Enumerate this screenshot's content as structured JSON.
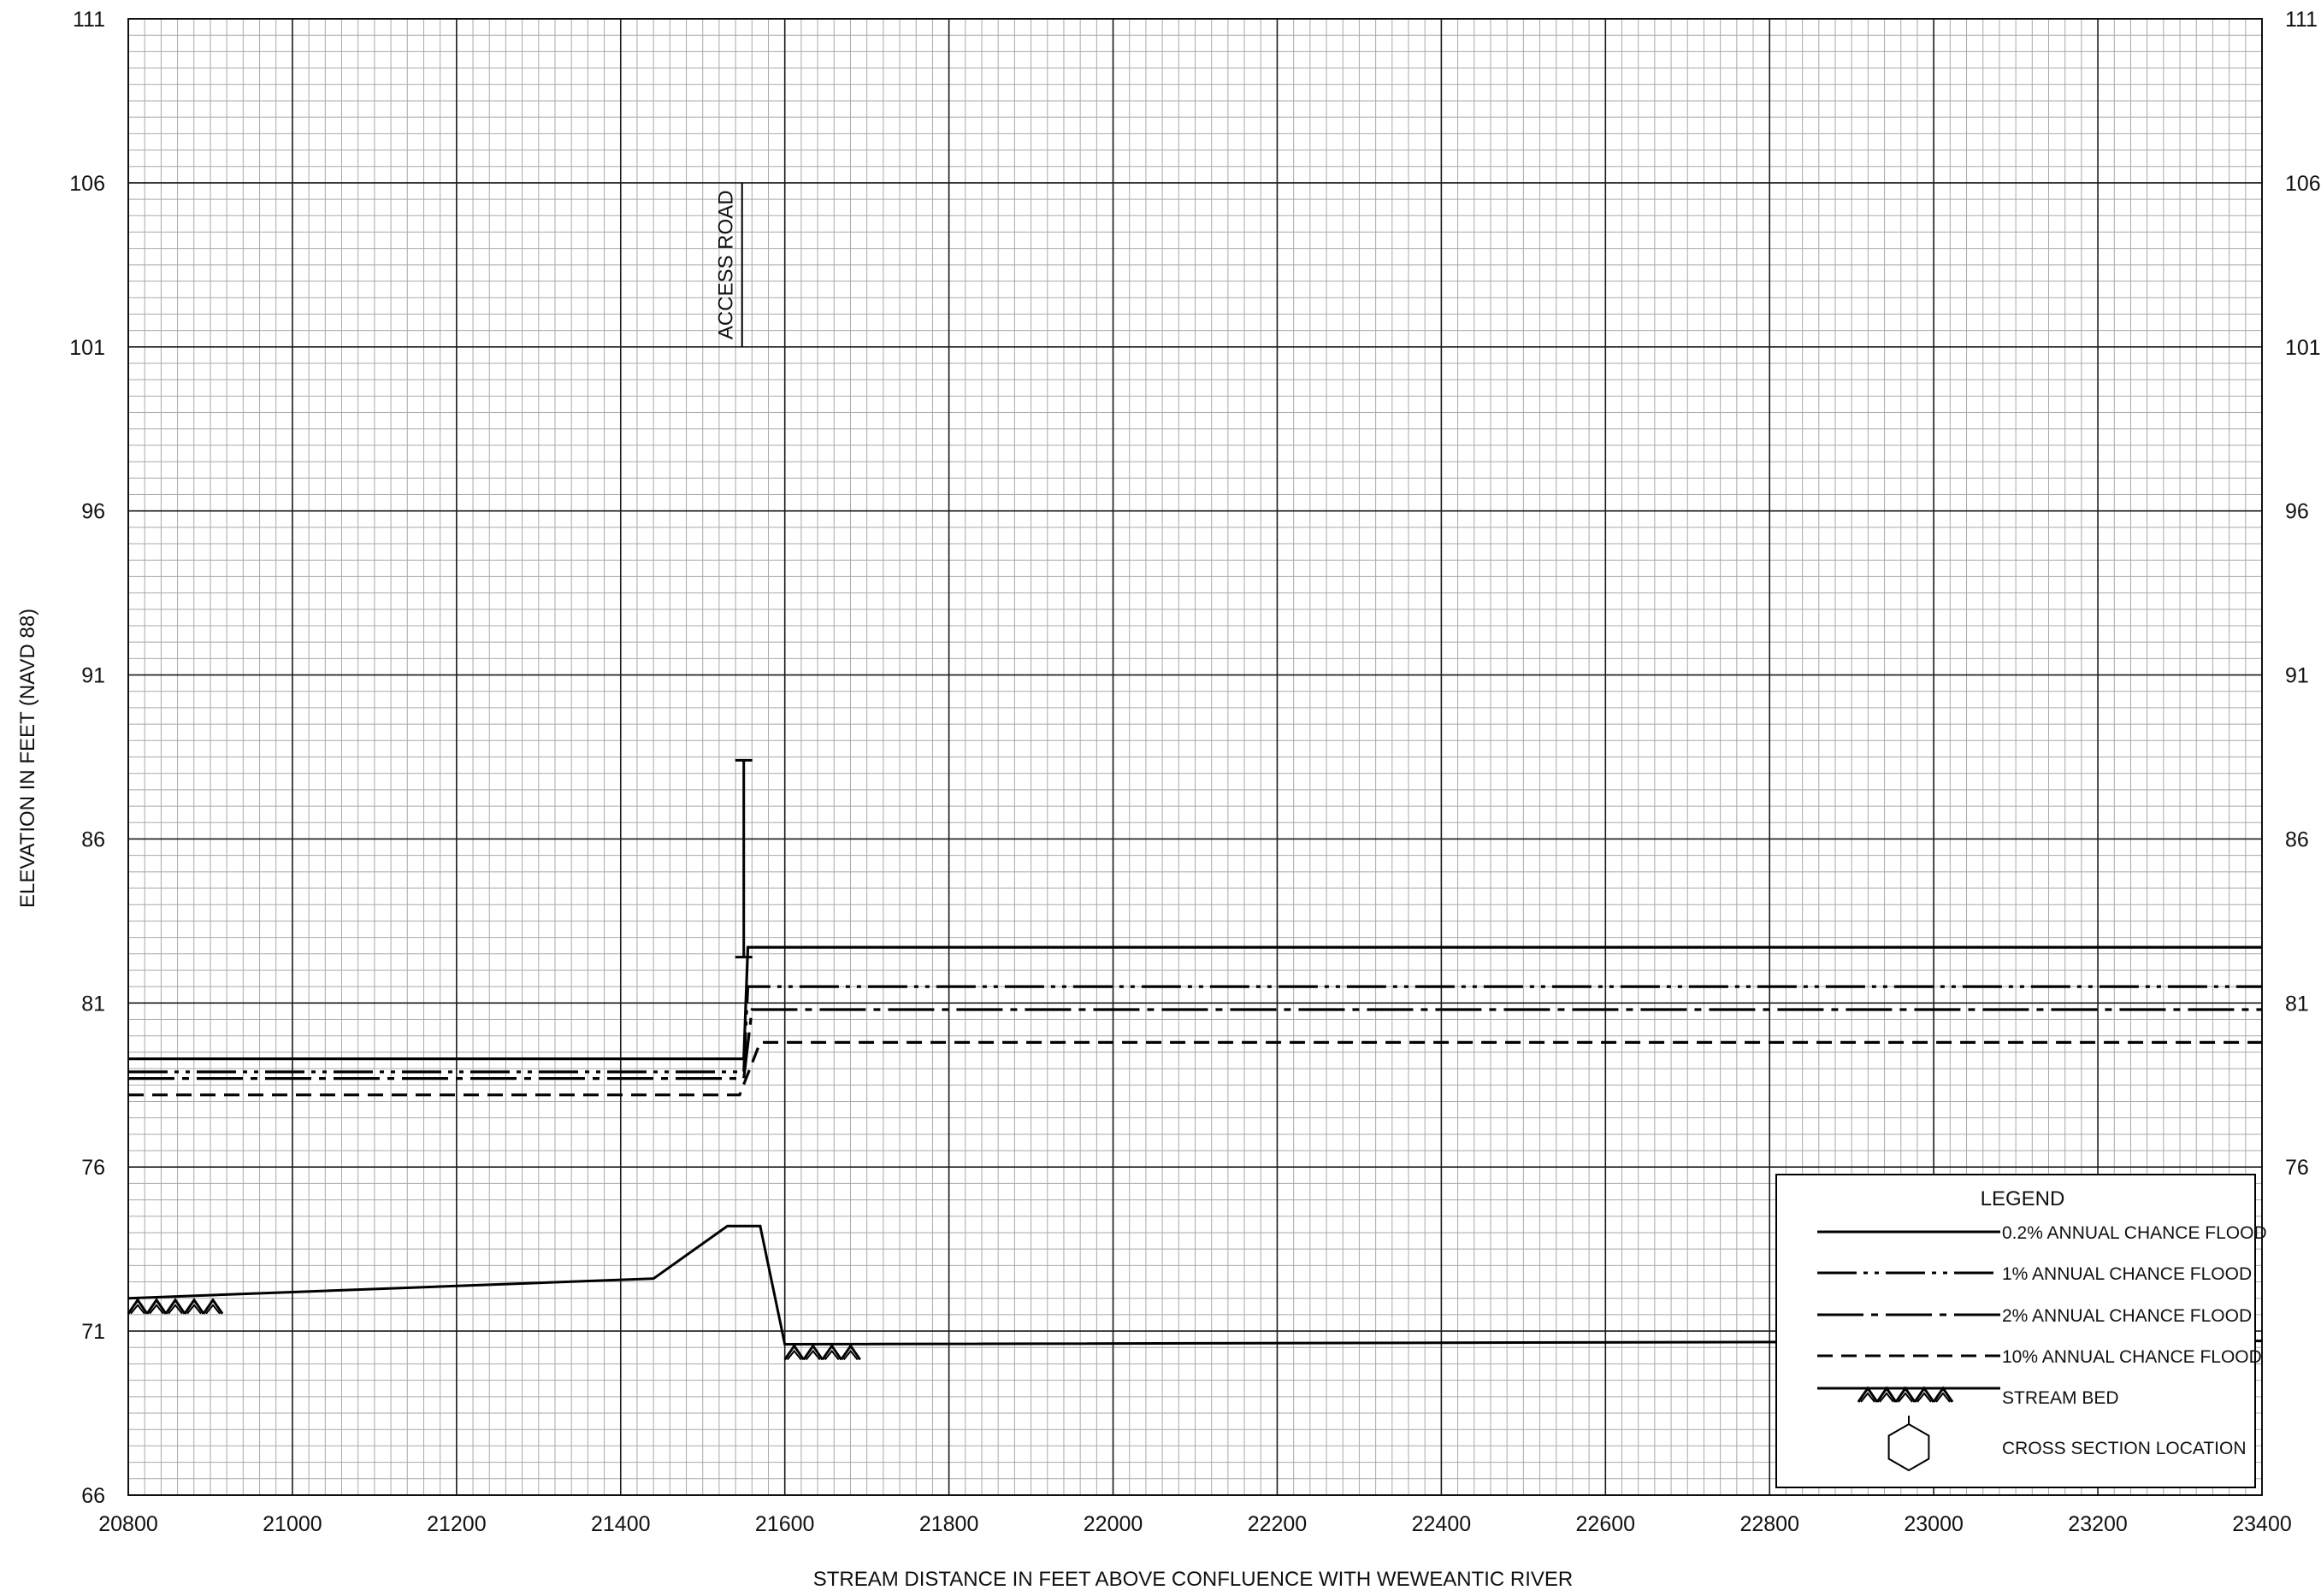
{
  "chart_data": {
    "type": "line",
    "xlabel": "STREAM DISTANCE IN FEET ABOVE CONFLUENCE WITH WEWEANTIC RIVER",
    "ylabel": "ELEVATION IN FEET (NAVD 88)",
    "xlim": [
      20800,
      23400
    ],
    "ylim": [
      66,
      111
    ],
    "x_ticks": [
      "20800",
      "21000",
      "21200",
      "21400",
      "21600",
      "21800",
      "22000",
      "22200",
      "22400",
      "22600",
      "22800",
      "23000",
      "23200",
      "23400"
    ],
    "y_ticks": [
      "66",
      "71",
      "76",
      "81",
      "86",
      "91",
      "96",
      "101",
      "106",
      "111"
    ],
    "y_ticks_right": [
      "76",
      "81",
      "86",
      "91",
      "96",
      "101",
      "106",
      "111"
    ],
    "grid": true,
    "legend_position": "bottom-right",
    "series": [
      {
        "name": "0.2% ANNUAL CHANCE FLOOD",
        "style": "solid",
        "points": [
          [
            20800,
            79.3
          ],
          [
            21550,
            79.3
          ],
          [
            21555,
            82.7
          ],
          [
            23400,
            82.7
          ]
        ]
      },
      {
        "name": "1% ANNUAL CHANCE FLOOD",
        "style": "dash-dot-dot",
        "points": [
          [
            20800,
            78.9
          ],
          [
            21550,
            78.9
          ],
          [
            21555,
            81.5
          ],
          [
            23400,
            81.5
          ]
        ]
      },
      {
        "name": "2% ANNUAL CHANCE FLOOD",
        "style": "dash-dot",
        "points": [
          [
            20800,
            78.7
          ],
          [
            21550,
            78.7
          ],
          [
            21560,
            80.8
          ],
          [
            23400,
            80.8
          ]
        ]
      },
      {
        "name": "10% ANNUAL CHANCE FLOOD",
        "style": "dashed",
        "points": [
          [
            20800,
            78.2
          ],
          [
            21545,
            78.2
          ],
          [
            21570,
            79.8
          ],
          [
            23400,
            79.8
          ]
        ]
      },
      {
        "name": "STREAM BED",
        "style": "bed",
        "points": [
          [
            20800,
            72.0
          ],
          [
            21440,
            72.6
          ],
          [
            21530,
            74.2
          ],
          [
            21570,
            74.2
          ],
          [
            21600,
            70.6
          ],
          [
            23400,
            70.7
          ]
        ]
      }
    ],
    "structure": {
      "label": "ACCESS ROAD",
      "x": 21550,
      "top": 88.4,
      "bottom": 82.4,
      "label_top": 106,
      "label_bottom": 101
    },
    "bed_hatches": [
      {
        "x_start": 20800,
        "x_end": 20920,
        "y": 72.0
      },
      {
        "x_start": 21600,
        "x_end": 21710,
        "y": 70.6
      }
    ],
    "legend": {
      "title": "LEGEND",
      "items": [
        {
          "label": "0.2% ANNUAL CHANCE FLOOD",
          "style": "solid"
        },
        {
          "label": "1% ANNUAL CHANCE FLOOD",
          "style": "dash-dot-dot"
        },
        {
          "label": "2% ANNUAL CHANCE FLOOD",
          "style": "dash-dot"
        },
        {
          "label": "10% ANNUAL CHANCE FLOOD",
          "style": "dashed"
        },
        {
          "label": "STREAM BED",
          "style": "bed"
        },
        {
          "label": "CROSS SECTION LOCATION",
          "style": "hexagon"
        }
      ]
    }
  }
}
